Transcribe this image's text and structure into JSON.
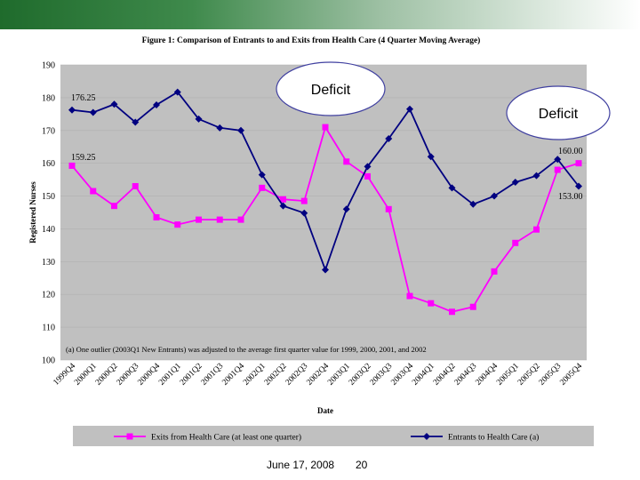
{
  "slide": {
    "footer_date": "June 17, 2008",
    "footer_page": "20",
    "callout_left": "Deficit",
    "callout_right": "Deficit"
  },
  "colors": {
    "plot_bg": "#c0c0c0",
    "exits": "#ff00ff",
    "entrants": "#000080",
    "band": "#1f6b2c"
  },
  "chart_data": {
    "type": "line",
    "title": "Figure 1: Comparison of Entrants to and Exits from Health Care (4 Quarter Moving Average)",
    "xlabel": "Date",
    "ylabel": "Registered Nurses",
    "ylim": [
      100,
      190
    ],
    "yticks": [
      100,
      110,
      120,
      130,
      140,
      150,
      160,
      170,
      180,
      190
    ],
    "categories": [
      "1999Q4",
      "2000Q1",
      "2000Q2",
      "2000Q3",
      "2000Q4",
      "2001Q1",
      "2001Q2",
      "2001Q3",
      "2001Q4",
      "2002Q1",
      "2002Q2",
      "2002Q3",
      "2002Q4",
      "2003Q1",
      "2003Q2",
      "2003Q3",
      "2003Q4",
      "2004Q1",
      "2004Q2",
      "2004Q3",
      "2004Q4",
      "2005Q1",
      "2005Q2",
      "2005Q3",
      "2005Q4"
    ],
    "series": [
      {
        "name": "Exits from Health Care (at least one quarter)",
        "values": [
          159.25,
          151.5,
          147.0,
          153.0,
          143.5,
          141.3,
          142.8,
          142.8,
          142.8,
          152.5,
          149.0,
          148.5,
          171.0,
          160.5,
          156.0,
          146.0,
          119.5,
          117.3,
          114.7,
          116.2,
          127.0,
          135.7,
          139.8,
          158.0,
          160.0
        ]
      },
      {
        "name": "Entrants to Health Care (a)",
        "values": [
          176.25,
          175.5,
          178.0,
          172.5,
          177.8,
          181.7,
          173.5,
          170.8,
          170.0,
          156.5,
          147.0,
          144.8,
          127.5,
          146.0,
          159.0,
          167.5,
          176.5,
          162.0,
          152.5,
          147.5,
          150.0,
          154.2,
          156.2,
          161.2,
          153.0
        ]
      }
    ],
    "data_labels": {
      "exits_start": "159.25",
      "entrants_start": "176.25",
      "exits_end": "160.00",
      "entrants_end": "153.00"
    },
    "note": "(a) One outlier (2003Q1 New Entrants) was adjusted to the average first quarter value for 1999, 2000, 2001, and 2002"
  }
}
